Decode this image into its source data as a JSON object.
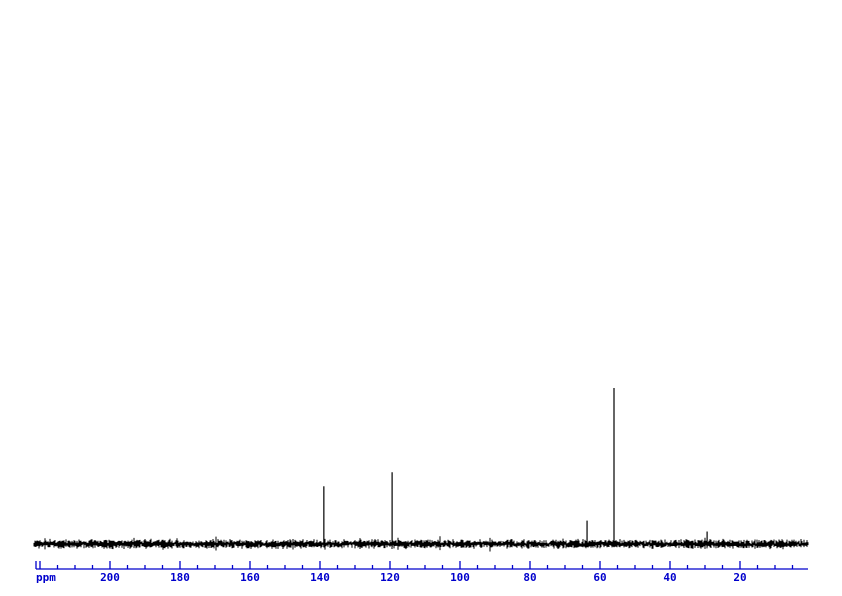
{
  "chart_data": {
    "type": "line",
    "subtype": "nmr-spectrum",
    "title": "",
    "xlabel": "ppm",
    "ylabel": "",
    "x_axis": {
      "unit_label": "ppm",
      "direction": "decreasing-left-to-right",
      "range_ppm": [
        221,
        0.5
      ],
      "labeled_ticks": [
        "200",
        "180",
        "160",
        "140",
        "120",
        "100",
        "80",
        "60",
        "40",
        "20"
      ],
      "labeled_tick_values": [
        200,
        180,
        160,
        140,
        120,
        100,
        80,
        60,
        40,
        20
      ],
      "major_tick_step_ppm": 20,
      "minor_tick_step_ppm": 5,
      "first_tick_ppm": 220,
      "last_tick_ppm": 5,
      "grid": "off"
    },
    "y_axis": {
      "visible": false
    },
    "legend": null,
    "series": [
      {
        "name": "spectrum-trace",
        "description": "flat noisy baseline across full ppm range with sharp singlet peaks",
        "peaks": [
          {
            "ppm": 138.9,
            "intensity": 0.37
          },
          {
            "ppm": 119.4,
            "intensity": 0.46
          },
          {
            "ppm": 63.7,
            "intensity": 0.15
          },
          {
            "ppm": 56.0,
            "intensity": 1.0
          },
          {
            "ppm": 29.4,
            "intensity": 0.08
          }
        ],
        "baseline_noise": true
      }
    ]
  },
  "colors": {
    "axis": "#0000cc",
    "trace": "#000000",
    "background": "#ffffff"
  }
}
